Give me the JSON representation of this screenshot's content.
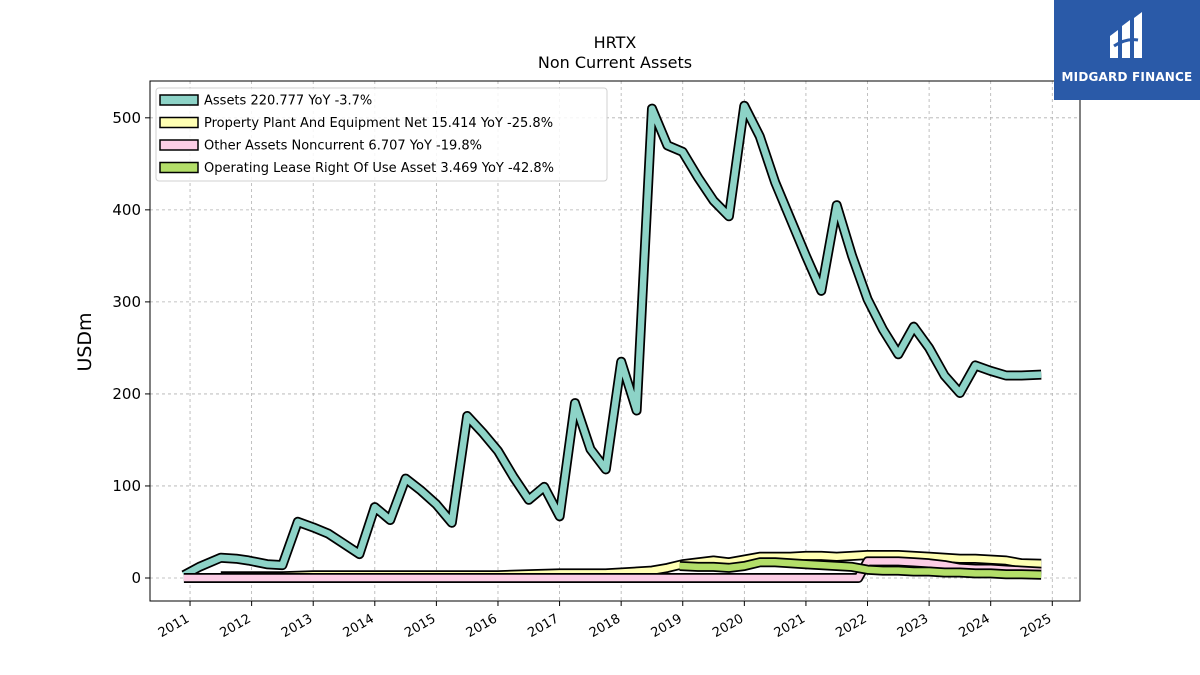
{
  "chart_data": {
    "type": "line",
    "title": "HRTX",
    "subtitle": "Non Current  Assets",
    "ylabel": "USDm",
    "ylim": [
      -25,
      540
    ],
    "xlim": [
      2010.35,
      2025.45
    ],
    "yticks": [
      0,
      100,
      200,
      300,
      400,
      500
    ],
    "xticks": [
      2011,
      2012,
      2013,
      2014,
      2015,
      2016,
      2017,
      2018,
      2019,
      2020,
      2021,
      2022,
      2023,
      2024,
      2025
    ],
    "grid": true,
    "legend_position": "top-left",
    "series": [
      {
        "name": "Assets  220.777 YoY -3.7%",
        "color": "#8dd3c7",
        "x": [
          2010.9,
          2011.15,
          2011.5,
          2011.75,
          2011.95,
          2012.25,
          2012.5,
          2012.75,
          2013.0,
          2013.25,
          2013.5,
          2013.75,
          2014.0,
          2014.25,
          2014.5,
          2014.75,
          2015.0,
          2015.25,
          2015.5,
          2015.75,
          2016.0,
          2016.25,
          2016.5,
          2016.75,
          2017.0,
          2017.25,
          2017.5,
          2017.75,
          2018.0,
          2018.25,
          2018.5,
          2018.75,
          2019.0,
          2019.25,
          2019.5,
          2019.75,
          2020.0,
          2020.25,
          2020.5,
          2020.75,
          2021.0,
          2021.25,
          2021.5,
          2021.75,
          2022.0,
          2022.25,
          2022.5,
          2022.75,
          2023.0,
          2023.25,
          2023.5,
          2023.75,
          2024.0,
          2024.25,
          2024.5,
          2024.82
        ],
        "values": [
          3,
          12,
          22,
          21,
          19,
          15,
          14,
          61,
          55,
          48,
          37,
          26,
          77,
          63,
          108,
          95,
          80,
          60,
          176,
          158,
          138,
          110,
          85,
          99,
          67,
          190,
          140,
          118,
          235,
          182,
          510,
          470,
          463,
          435,
          410,
          393,
          513,
          480,
          430,
          390,
          350,
          312,
          405,
          350,
          303,
          270,
          243,
          273,
          250,
          220,
          201,
          231,
          225,
          220,
          220,
          221
        ]
      },
      {
        "name": "Property Plant And Equipment Net  15.414 YoY -25.8%",
        "color": "#ffffb3",
        "x": [
          2011.5,
          2012.0,
          2012.5,
          2013.0,
          2013.5,
          2014.0,
          2014.5,
          2015.0,
          2015.5,
          2016.0,
          2016.5,
          2017.0,
          2017.5,
          2017.75,
          2018.0,
          2018.5,
          2018.75,
          2019.0,
          2019.25,
          2019.5,
          2019.75,
          2020.0,
          2020.25,
          2020.5,
          2020.75,
          2021.0,
          2021.25,
          2021.5,
          2021.75,
          2022.0,
          2022.25,
          2022.5,
          2022.75,
          2023.0,
          2023.25,
          2023.5,
          2023.75,
          2024.0,
          2024.25,
          2024.5,
          2024.82
        ],
        "values": [
          2,
          2,
          2,
          3,
          3,
          3,
          3,
          3,
          3,
          3,
          4,
          5,
          5,
          5,
          6,
          8,
          11,
          15,
          17,
          19,
          17,
          20,
          23,
          23,
          23,
          24,
          24,
          23,
          24,
          25,
          25,
          25,
          24,
          23,
          22,
          21,
          21,
          20,
          19,
          16,
          15.4
        ]
      },
      {
        "name": "Other Assets Noncurrent  6.707 YoY -19.8%",
        "color": "#fccde5",
        "x": [
          2010.9,
          2011.5,
          2012.0,
          2013.0,
          2014.0,
          2015.0,
          2016.0,
          2017.0,
          2018.0,
          2019.0,
          2020.0,
          2021.0,
          2021.5,
          2021.85,
          2022.0,
          2022.25,
          2022.5,
          2022.75,
          2023.0,
          2023.25,
          2023.5,
          2023.75,
          2024.0,
          2024.25,
          2024.5,
          2024.82
        ],
        "values": [
          0,
          0,
          0,
          0,
          0,
          0,
          0,
          0,
          0,
          0,
          0,
          0,
          0,
          0,
          18,
          18,
          18,
          17,
          16,
          14,
          11,
          10,
          10,
          9,
          8,
          6.7
        ]
      },
      {
        "name": "Operating Lease Right Of Use Asset  3.469 YoY -42.8%",
        "color": "#b3de69",
        "x": [
          2018.95,
          2019.25,
          2019.5,
          2019.75,
          2020.0,
          2020.25,
          2020.5,
          2020.75,
          2021.0,
          2021.25,
          2021.5,
          2021.75,
          2022.0,
          2022.25,
          2022.5,
          2022.75,
          2023.0,
          2023.25,
          2023.5,
          2023.75,
          2024.0,
          2024.25,
          2024.5,
          2024.82
        ],
        "values": [
          13,
          12,
          12,
          11,
          13,
          17,
          17,
          16,
          15,
          14,
          13,
          12,
          9,
          8,
          8,
          7,
          7,
          6,
          6,
          5,
          5,
          4,
          4,
          3.5
        ]
      }
    ]
  },
  "logo": {
    "text": "MIDGARD FINANCE",
    "color": "#2a5aa8"
  }
}
